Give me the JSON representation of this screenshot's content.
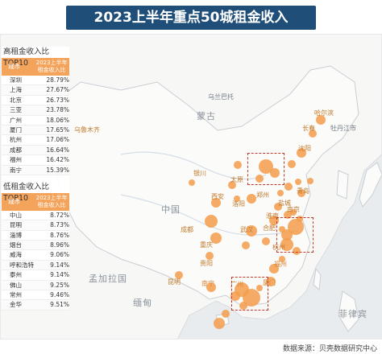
{
  "title": "2023上半年重点50城租金收入",
  "high_table": {
    "title": "高租金收入比TOP10",
    "header_city": "城市",
    "header_value": "2023上半年租金收入比",
    "rows": [
      {
        "city": "深圳",
        "value": "28.79%"
      },
      {
        "city": "上海",
        "value": "27.67%"
      },
      {
        "city": "北京",
        "value": "26.73%"
      },
      {
        "city": "三亚",
        "value": "23.78%"
      },
      {
        "city": "广州",
        "value": "18.06%"
      },
      {
        "city": "厦门",
        "value": "17.65%"
      },
      {
        "city": "杭州",
        "value": "17.06%"
      },
      {
        "city": "成都",
        "value": "16.64%"
      },
      {
        "city": "福州",
        "value": "16.42%"
      },
      {
        "city": "南宁",
        "value": "15.39%"
      }
    ]
  },
  "low_table": {
    "title": "低租金收入比TOP10",
    "header_city": "城市",
    "header_value": "2023上半年租金收入比",
    "rows": [
      {
        "city": "中山",
        "value": "8.72%"
      },
      {
        "city": "昆明",
        "value": "8.73%"
      },
      {
        "city": "淄博",
        "value": "8.76%"
      },
      {
        "city": "烟台",
        "value": "8.96%"
      },
      {
        "city": "威海",
        "value": "9.06%"
      },
      {
        "city": "呼和浩特",
        "value": "9.14%"
      },
      {
        "city": "泰州",
        "value": "9.14%"
      },
      {
        "city": "佛山",
        "value": "9.25%"
      },
      {
        "city": "常州",
        "value": "9.46%"
      },
      {
        "city": "金华",
        "value": "9.51%"
      }
    ]
  },
  "map_labels": {
    "mongolia": "蒙古",
    "china": "中国",
    "bangladesh": "孟加拉国",
    "myanmar": "缅甸",
    "philippines": "菲律宾",
    "urumqi": "乌鲁木齐",
    "ulaanbaatar": "乌兰巴托",
    "harbin": "哈尔滨",
    "changchun": "长春",
    "mudanjiang": "牡丹江市",
    "shenyang": "沈阳",
    "yinchuan": "银川",
    "taiyuan": "太原",
    "zhengzhou": "郑州",
    "luoyang": "洛阳",
    "xian": "西安",
    "chengdu": "成都",
    "chongqing": "重庆",
    "wuhan": "武汉",
    "nanjing": "南京",
    "yancheng": "盐城",
    "hangzhou": "杭州",
    "fuzhou": "福州",
    "nanning": "南宁",
    "guangzhou": "广州",
    "xiamen": "厦门",
    "guiyang": "贵阳",
    "kunming": "昆明",
    "qingdao": "青岛",
    "huainan": "淮南",
    "hefei": "合肥"
  },
  "source": "数据来源：贝壳数据研究中心",
  "colors": {
    "accent": "#f39c4a",
    "title_bg": "#1f4e79",
    "highlight_box": "#c0392b"
  }
}
